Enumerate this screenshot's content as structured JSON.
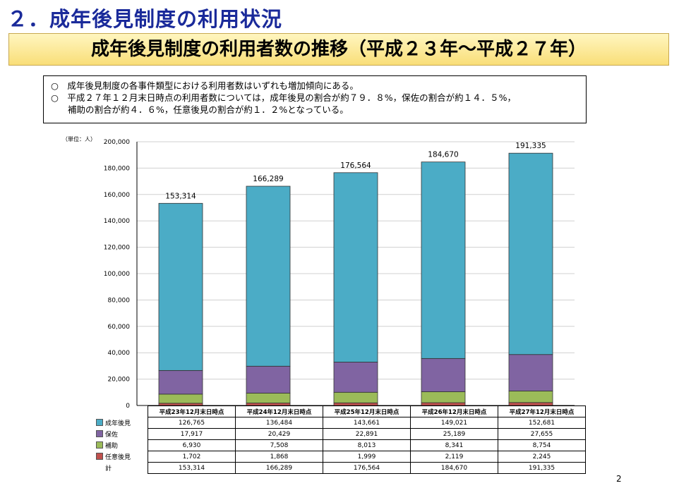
{
  "heading": "２．成年後見制度の利用状況",
  "banner": "成年後見制度の利用者数の推移（平成２３年～平成２７年）",
  "notes": [
    "○　成年後見制度の各事件類型における利用者数はいずれも増加傾向にある。",
    "○　平成２７年１２月末日時点の利用者数については，成年後見の割合が約７９．８%，保佐の割合が約１４．５%，",
    "補助の割合が約４．６%，任意後見の割合が約１．２%となっている。"
  ],
  "page_number": "2",
  "chart_data": {
    "type": "bar",
    "stacked": true,
    "unit_label": "（単位：人）",
    "categories": [
      "平成23年12月末日時点",
      "平成24年12月末日時点",
      "平成25年12月末日時点",
      "平成26年12月末日時点",
      "平成27年12月末日時点"
    ],
    "ylim": [
      0,
      200000
    ],
    "yticks": [
      0,
      20000,
      40000,
      60000,
      80000,
      100000,
      120000,
      140000,
      160000,
      180000,
      200000
    ],
    "ytick_labels": [
      "0",
      "20,000",
      "40,000",
      "60,000",
      "80,000",
      "100,000",
      "120,000",
      "140,000",
      "160,000",
      "180,000",
      "200,000"
    ],
    "grid": true,
    "series": [
      {
        "name": "任意後見",
        "color": "#c0504d",
        "values": [
          1702,
          1868,
          1999,
          2119,
          2245
        ],
        "labels": [
          "1,702",
          "1,868",
          "1,999",
          "2,119",
          "2,245"
        ]
      },
      {
        "name": "補助",
        "color": "#9bbb59",
        "values": [
          6930,
          7508,
          8013,
          8341,
          8754
        ],
        "labels": [
          "6,930",
          "7,508",
          "8,013",
          "8,341",
          "8,754"
        ]
      },
      {
        "name": "保佐",
        "color": "#8064a2",
        "values": [
          17917,
          20429,
          22891,
          25189,
          27655
        ],
        "labels": [
          "17,917",
          "20,429",
          "22,891",
          "25,189",
          "27,655"
        ]
      },
      {
        "name": "成年後見",
        "color": "#4bacc6",
        "values": [
          126765,
          136484,
          143661,
          149021,
          152681
        ],
        "labels": [
          "126,765",
          "136,484",
          "143,661",
          "149,021",
          "152,681"
        ]
      }
    ],
    "totals": [
      153314,
      166289,
      176564,
      184670,
      191335
    ],
    "total_labels": [
      "153,314",
      "166,289",
      "176,564",
      "184,670",
      "191,335"
    ],
    "total_row_label": "計",
    "table_row_order": [
      "成年後見",
      "保佐",
      "補助",
      "任意後見"
    ]
  }
}
